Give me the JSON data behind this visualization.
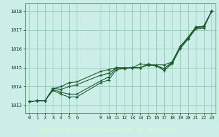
{
  "title": "Graphe pression niveau de la mer (hPa)",
  "bg_color": "#cceee8",
  "grid_color": "#99ccbb",
  "line_color": "#1a5c2a",
  "marker_color": "#1a5c2a",
  "title_bg": "#2d6b3a",
  "title_fg": "#cceecc",
  "xlim": [
    -0.5,
    23.5
  ],
  "ylim": [
    1012.6,
    1018.4
  ],
  "yticks": [
    1013,
    1014,
    1015,
    1016,
    1017,
    1018
  ],
  "xticks": [
    0,
    1,
    2,
    3,
    4,
    5,
    6,
    9,
    10,
    11,
    12,
    13,
    14,
    15,
    16,
    17,
    18,
    19,
    20,
    21,
    22,
    23
  ],
  "series": [
    {
      "x": [
        0,
        1,
        2,
        3,
        4,
        5,
        6,
        9,
        10,
        11,
        12,
        13,
        14,
        15,
        16,
        17,
        18,
        19,
        20,
        21,
        22,
        23
      ],
      "y": [
        1013.2,
        1013.25,
        1013.25,
        1013.8,
        1013.6,
        1013.45,
        1013.45,
        1014.2,
        1014.35,
        1014.9,
        1014.95,
        1015.0,
        1015.0,
        1015.2,
        1015.1,
        1014.85,
        1015.2,
        1016.0,
        1016.5,
        1017.05,
        1017.1,
        1018.0
      ]
    },
    {
      "x": [
        0,
        1,
        2,
        3,
        4,
        5,
        6,
        9,
        10,
        11,
        12,
        13,
        14,
        15,
        16,
        17,
        18,
        19,
        20,
        21,
        22,
        23
      ],
      "y": [
        1013.2,
        1013.25,
        1013.25,
        1013.85,
        1013.7,
        1013.6,
        1013.6,
        1014.3,
        1014.5,
        1015.0,
        1015.0,
        1015.0,
        1015.0,
        1015.15,
        1015.1,
        1014.95,
        1015.25,
        1016.05,
        1016.55,
        1017.1,
        1017.15,
        1018.0
      ]
    },
    {
      "x": [
        0,
        1,
        2,
        3,
        4,
        5,
        6,
        9,
        10,
        11,
        12,
        13,
        14,
        15,
        16,
        17,
        18,
        19,
        20,
        21,
        22,
        23
      ],
      "y": [
        1013.2,
        1013.25,
        1013.25,
        1013.9,
        1013.85,
        1014.0,
        1014.1,
        1014.6,
        1014.7,
        1015.0,
        1014.95,
        1015.0,
        1015.0,
        1015.15,
        1015.1,
        1014.95,
        1015.3,
        1016.1,
        1016.6,
        1017.15,
        1017.2,
        1018.0
      ]
    },
    {
      "x": [
        0,
        1,
        2,
        3,
        4,
        5,
        6,
        9,
        10,
        11,
        12,
        13,
        14,
        15,
        16,
        17,
        18,
        19,
        20,
        21,
        22,
        23
      ],
      "y": [
        1013.2,
        1013.25,
        1013.25,
        1013.9,
        1014.0,
        1014.2,
        1014.25,
        1014.8,
        1014.9,
        1015.0,
        1014.95,
        1015.0,
        1015.2,
        1015.15,
        1015.15,
        1015.15,
        1015.3,
        1016.1,
        1016.6,
        1017.15,
        1017.2,
        1018.0
      ]
    }
  ]
}
